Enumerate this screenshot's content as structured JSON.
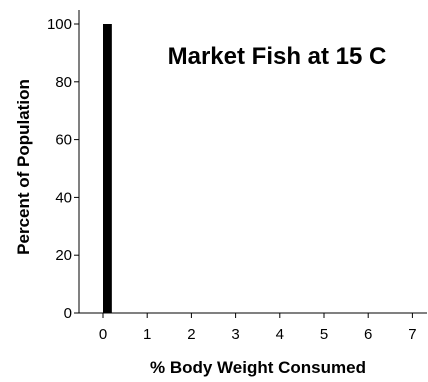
{
  "chart_data": {
    "type": "bar",
    "title": "Market Fish at 15 C",
    "xlabel": "% Body Weight Consumed",
    "ylabel": "Percent of Population",
    "x_ticks": [
      "0",
      "1",
      "2",
      "3",
      "4",
      "5",
      "6",
      "7"
    ],
    "y_ticks": [
      "0",
      "20",
      "40",
      "60",
      "80",
      "100"
    ],
    "xlim": [
      -0.5,
      7.3
    ],
    "ylim": [
      0,
      105
    ],
    "bars": [
      {
        "x_start": 0.0,
        "x_end": 0.2,
        "value": 100
      }
    ],
    "bar_color": "#000000",
    "grid": false,
    "legend": "none"
  }
}
